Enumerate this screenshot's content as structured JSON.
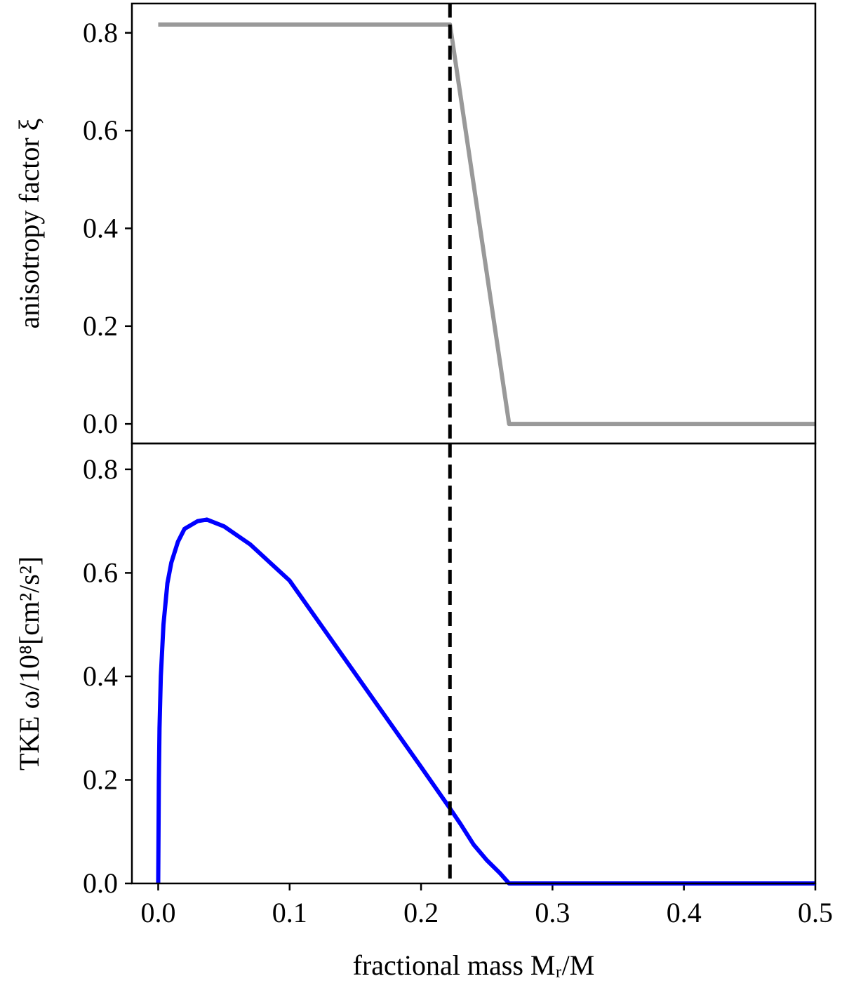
{
  "chart_data": [
    {
      "type": "line",
      "ylabel": "anisotropy factor ξ",
      "x": [
        0,
        0.222,
        0.267,
        0.5
      ],
      "values": [
        0.817,
        0.817,
        0,
        0
      ],
      "color": "#999999",
      "vline": 0.222,
      "xlim": [
        -0.02,
        0.5
      ],
      "ylim": [
        -0.04,
        0.86
      ],
      "yticks": [
        {
          "value": 0,
          "label": "0.0"
        },
        0.2,
        0.4,
        0.6,
        0.8
      ]
    },
    {
      "type": "line",
      "ylabel": "TKE ω/10⁸[cm²/s²]",
      "xlabel": "fractional mass Mᵣ/M",
      "x": [
        0,
        0.0005,
        0.001,
        0.002,
        0.004,
        0.007,
        0.01,
        0.015,
        0.02,
        0.03,
        0.037,
        0.05,
        0.07,
        0.1,
        0.15,
        0.2,
        0.222,
        0.23,
        0.24,
        0.25,
        0.26,
        0.267,
        0.3,
        0.4,
        0.5
      ],
      "values": [
        0,
        0.2,
        0.3,
        0.4,
        0.5,
        0.58,
        0.62,
        0.66,
        0.685,
        0.7,
        0.703,
        0.69,
        0.655,
        0.585,
        0.405,
        0.225,
        0.145,
        0.115,
        0.075,
        0.045,
        0.02,
        0,
        0,
        0,
        0
      ],
      "color": "#0000ff",
      "vline": 0.222,
      "xlim": [
        -0.02,
        0.5
      ],
      "ylim": [
        0,
        0.85
      ],
      "xticks": [
        {
          "value": 0,
          "label": "0.0"
        },
        0.1,
        0.2,
        0.3,
        0.4,
        0.5
      ],
      "yticks": [
        {
          "value": 0,
          "label": "0.0"
        },
        0.2,
        0.4,
        0.6,
        0.8
      ]
    }
  ]
}
